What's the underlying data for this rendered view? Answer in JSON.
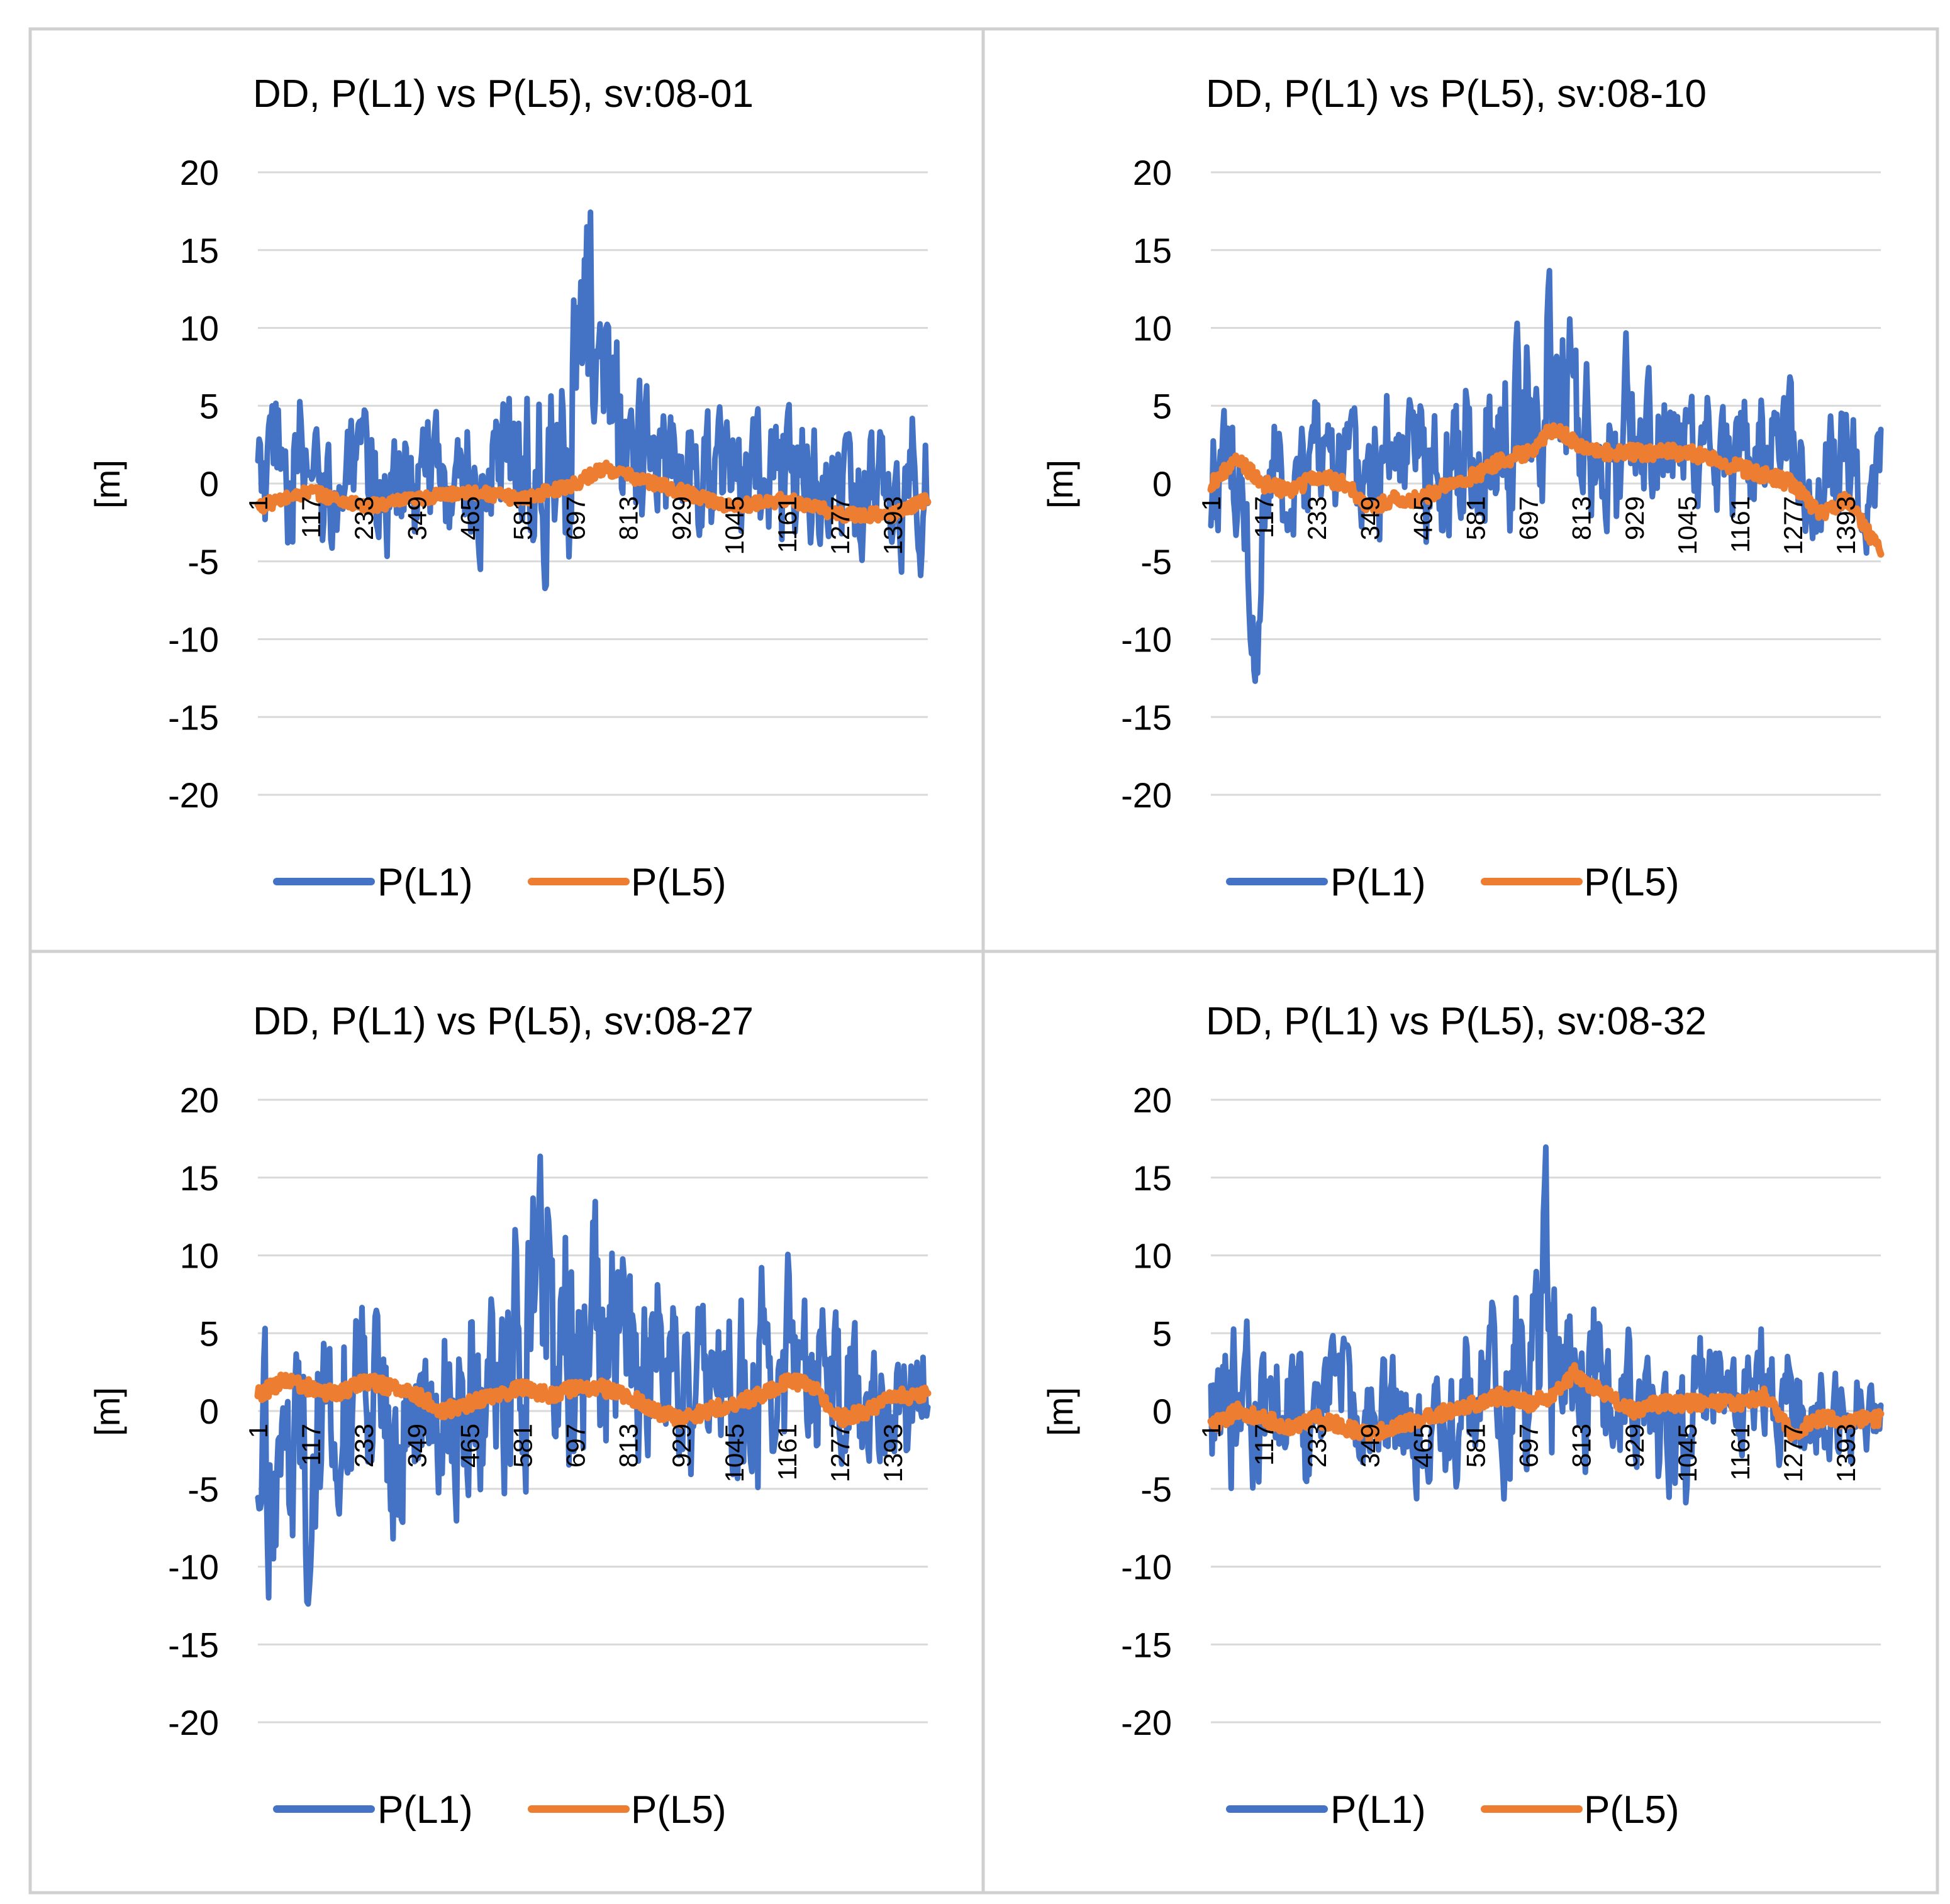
{
  "chart_data": [
    {
      "type": "line",
      "title": "DD, P(L1) vs P(L5), sv:08-01",
      "ylabel": "[m]",
      "xlabel": "",
      "ylim": [
        -20,
        20
      ],
      "yticks": [
        "20",
        "15",
        "10",
        "5",
        "0",
        "-5",
        "-10",
        "-15",
        "-20"
      ],
      "xticks": [
        "1",
        "117",
        "233",
        "349",
        "465",
        "581",
        "697",
        "813",
        "929",
        "1045",
        "1161",
        "1277",
        "1393"
      ],
      "xrange": [
        1,
        1470
      ],
      "grid": true,
      "legend": "bottom",
      "series": [
        {
          "name": "P(L1)",
          "color": "#4472c4",
          "style": "noisy",
          "x": [
            1,
            60,
            117,
            175,
            233,
            291,
            349,
            407,
            465,
            523,
            581,
            640,
            697,
            740,
            760,
            813,
            870,
            929,
            987,
            1045,
            1103,
            1161,
            1219,
            1277,
            1335,
            1393,
            1470
          ],
          "y": [
            0,
            1,
            0,
            0,
            0,
            0,
            0,
            1,
            0,
            0,
            2,
            4,
            6,
            10,
            6,
            3,
            1,
            2,
            1,
            0,
            1,
            1,
            0,
            -1,
            -1,
            -1,
            0
          ],
          "amp": [
            3,
            4,
            3,
            3,
            3,
            3,
            3,
            3,
            3,
            3,
            4,
            6,
            7,
            6,
            5,
            4,
            3,
            3,
            3,
            3,
            3,
            4,
            3,
            3,
            3,
            3,
            3
          ]
        },
        {
          "name": "P(L5)",
          "color": "#ed7d31",
          "style": "smooth",
          "x": [
            1,
            117,
            233,
            349,
            465,
            581,
            697,
            760,
            813,
            929,
            1045,
            1161,
            1277,
            1393,
            1470
          ],
          "y": [
            -1.5,
            -0.5,
            -1.5,
            -1,
            -0.5,
            -1,
            0,
            1,
            0.5,
            -0.5,
            -1.5,
            -1,
            -2,
            -2,
            -1
          ],
          "amp": [
            0.5,
            0.5,
            0.5,
            0.5,
            0.5,
            0.5,
            0.5,
            0.5,
            0.5,
            0.5,
            0.5,
            0.5,
            0.5,
            0.5,
            0.5
          ]
        }
      ]
    },
    {
      "type": "line",
      "title": "DD, P(L1) vs P(L5), sv:08-10",
      "ylabel": "[m]",
      "xlabel": "",
      "ylim": [
        -20,
        20
      ],
      "yticks": [
        "20",
        "15",
        "10",
        "5",
        "0",
        "-5",
        "-10",
        "-15",
        "-20"
      ],
      "xticks": [
        "1",
        "117",
        "233",
        "349",
        "465",
        "581",
        "697",
        "813",
        "929",
        "1045",
        "1161",
        "1277",
        "1393"
      ],
      "xrange": [
        1,
        1470
      ],
      "grid": true,
      "legend": "bottom",
      "series": [
        {
          "name": "P(L1)",
          "color": "#4472c4",
          "style": "noisy",
          "x": [
            1,
            60,
            105,
            117,
            175,
            233,
            291,
            349,
            407,
            465,
            523,
            581,
            640,
            697,
            740,
            760,
            813,
            870,
            929,
            987,
            1045,
            1103,
            1161,
            1219,
            1277,
            1335,
            1393,
            1470
          ],
          "y": [
            0,
            1,
            -12,
            0,
            1,
            1,
            2,
            1,
            2,
            1,
            1,
            3,
            4,
            5,
            8,
            6,
            4,
            3,
            3,
            3,
            2,
            2,
            3,
            3,
            2,
            1,
            1,
            1
          ],
          "amp": [
            3,
            4,
            3,
            3,
            3,
            3,
            3,
            3,
            3,
            3,
            3,
            4,
            5,
            5,
            6,
            5,
            4,
            4,
            4,
            3,
            3,
            3,
            3,
            3,
            3,
            3,
            3,
            3
          ]
        },
        {
          "name": "P(L5)",
          "color": "#ed7d31",
          "style": "smooth",
          "x": [
            1,
            60,
            117,
            175,
            233,
            291,
            349,
            407,
            465,
            523,
            581,
            640,
            697,
            750,
            813,
            870,
            929,
            987,
            1045,
            1103,
            1161,
            1219,
            1277,
            1335,
            1393,
            1440,
            1470
          ],
          "y": [
            0,
            1.5,
            0,
            -0.5,
            0.5,
            0,
            -1.5,
            -1,
            -1,
            0,
            0.5,
            1.5,
            2,
            3.5,
            2.5,
            2,
            2,
            2,
            2,
            1.5,
            1,
            0.5,
            0,
            -2,
            -1,
            -3,
            -4.5
          ],
          "amp": [
            0.6,
            0.6,
            0.6,
            0.6,
            0.6,
            0.6,
            0.6,
            0.6,
            0.6,
            0.6,
            0.6,
            0.6,
            0.6,
            0.6,
            0.6,
            0.6,
            0.6,
            0.6,
            0.6,
            0.6,
            0.6,
            0.6,
            0.6,
            0.6,
            0.6,
            0.6,
            0.6
          ]
        }
      ]
    },
    {
      "type": "line",
      "title": "DD, P(L1) vs P(L5), sv:08-27",
      "ylabel": "[m]",
      "xlabel": "",
      "ylim": [
        -20,
        20
      ],
      "yticks": [
        "20",
        "15",
        "10",
        "5",
        "0",
        "-5",
        "-10",
        "-15",
        "-20"
      ],
      "xticks": [
        "1",
        "117",
        "233",
        "349",
        "465",
        "581",
        "697",
        "813",
        "929",
        "1045",
        "1161",
        "1277",
        "1393"
      ],
      "xrange": [
        1,
        1470
      ],
      "grid": true,
      "legend": "bottom",
      "series": [
        {
          "name": "P(L1)",
          "color": "#4472c4",
          "style": "noisy",
          "x": [
            1,
            60,
            117,
            175,
            233,
            291,
            349,
            407,
            465,
            523,
            581,
            640,
            697,
            740,
            760,
            813,
            870,
            929,
            987,
            1045,
            1103,
            1161,
            1219,
            1277,
            1335,
            1393,
            1470
          ],
          "y": [
            -4,
            -3,
            -4,
            -1,
            -1,
            0,
            -1,
            0,
            0,
            1,
            4,
            5,
            4,
            7,
            5,
            3,
            2,
            2,
            2,
            1,
            2,
            3,
            2,
            1,
            1,
            1,
            1
          ],
          "amp": [
            5,
            6,
            6,
            5,
            5,
            5,
            5,
            5,
            5,
            5,
            7,
            7,
            7,
            7,
            6,
            5,
            5,
            4,
            4,
            4,
            5,
            5,
            4,
            4,
            3,
            3,
            3
          ]
        },
        {
          "name": "P(L5)",
          "color": "#ed7d31",
          "style": "smooth",
          "x": [
            1,
            60,
            117,
            175,
            233,
            291,
            349,
            407,
            465,
            523,
            581,
            640,
            697,
            750,
            813,
            870,
            929,
            987,
            1045,
            1103,
            1161,
            1219,
            1277,
            1335,
            1393,
            1470
          ],
          "y": [
            1,
            2,
            1.5,
            1,
            2,
            1.5,
            1,
            0,
            0.5,
            1,
            1.5,
            1,
            1.5,
            1.5,
            1,
            0,
            -0.5,
            0,
            0.5,
            1,
            2,
            1.5,
            -0.5,
            0,
            1,
            1
          ],
          "amp": [
            0.6,
            0.6,
            0.6,
            0.6,
            0.6,
            0.6,
            0.6,
            0.6,
            0.6,
            0.6,
            0.6,
            0.6,
            0.6,
            0.6,
            0.6,
            0.6,
            0.6,
            0.6,
            0.6,
            0.6,
            0.6,
            0.6,
            0.6,
            0.6,
            0.6,
            0.6
          ]
        }
      ]
    },
    {
      "type": "line",
      "title": "DD, P(L1) vs P(L5), sv:08-32",
      "ylabel": "[m]",
      "xlabel": "",
      "ylim": [
        -20,
        20
      ],
      "yticks": [
        "20",
        "15",
        "10",
        "5",
        "0",
        "-5",
        "-10",
        "-15",
        "-20"
      ],
      "xticks": [
        "1",
        "117",
        "233",
        "349",
        "465",
        "581",
        "697",
        "813",
        "929",
        "1045",
        "1161",
        "1277",
        "1393"
      ],
      "xrange": [
        1,
        1470
      ],
      "grid": true,
      "legend": "bottom",
      "series": [
        {
          "name": "P(L1)",
          "color": "#4472c4",
          "style": "noisy",
          "x": [
            1,
            60,
            117,
            175,
            233,
            291,
            349,
            407,
            465,
            523,
            581,
            640,
            697,
            740,
            760,
            813,
            870,
            929,
            987,
            1045,
            1103,
            1161,
            1219,
            1277,
            1335,
            1393,
            1470
          ],
          "y": [
            -1,
            1,
            -1,
            0,
            -1,
            1,
            -1,
            0,
            -1,
            0,
            1,
            2,
            3,
            7,
            4,
            3,
            2,
            1,
            0,
            -1,
            1,
            2,
            1,
            -1,
            0,
            0,
            0
          ],
          "amp": [
            3,
            4,
            3,
            3,
            3,
            3,
            3,
            3,
            3,
            3,
            4,
            4,
            5,
            6,
            5,
            4,
            4,
            3,
            3,
            4,
            3,
            4,
            3,
            3,
            2,
            2,
            2
          ]
        },
        {
          "name": "P(L5)",
          "color": "#ed7d31",
          "style": "smooth",
          "x": [
            1,
            60,
            117,
            175,
            233,
            291,
            349,
            407,
            465,
            523,
            581,
            640,
            697,
            750,
            800,
            813,
            870,
            929,
            987,
            1045,
            1103,
            1161,
            1219,
            1277,
            1335,
            1393,
            1470
          ],
          "y": [
            -1,
            0,
            -0.5,
            -1,
            -0.5,
            -1,
            -1.5,
            -1,
            -0.5,
            0,
            0.5,
            1,
            0.5,
            1,
            2.5,
            2,
            1,
            0,
            0.5,
            0.5,
            0.5,
            0.5,
            1,
            -1.5,
            -0.5,
            -0.5,
            -0.5
          ],
          "amp": [
            0.6,
            0.6,
            0.6,
            0.6,
            0.6,
            0.6,
            0.6,
            0.6,
            0.6,
            0.6,
            0.6,
            0.6,
            0.6,
            0.6,
            0.6,
            0.6,
            0.6,
            0.6,
            0.6,
            0.6,
            0.6,
            0.6,
            0.6,
            0.6,
            0.6,
            0.6,
            0.6
          ]
        }
      ]
    }
  ]
}
